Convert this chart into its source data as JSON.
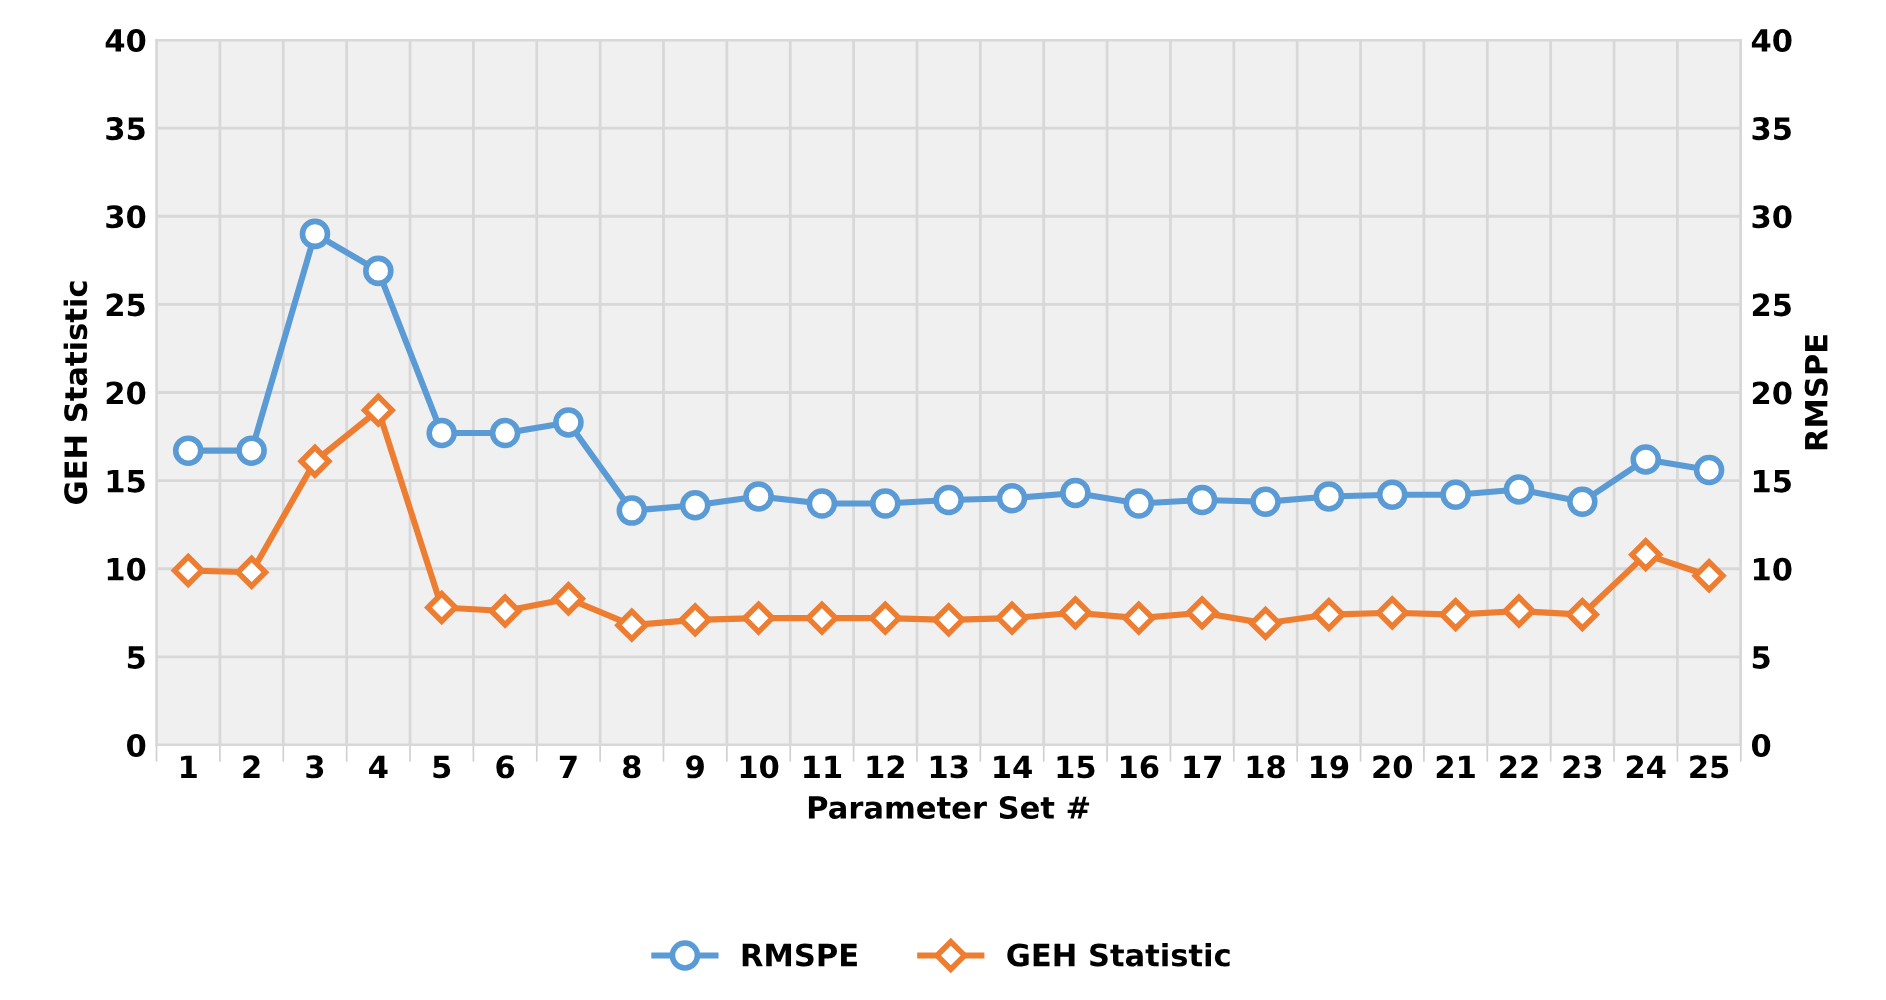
{
  "chart_data": {
    "type": "line",
    "xlabel": "Parameter Set #",
    "ylabel": "GEH Statistic",
    "y2label": "RMSPE",
    "categories": [
      "1",
      "2",
      "3",
      "4",
      "5",
      "6",
      "7",
      "8",
      "9",
      "10",
      "11",
      "12",
      "13",
      "14",
      "15",
      "16",
      "17",
      "18",
      "19",
      "20",
      "21",
      "22",
      "23",
      "24",
      "25"
    ],
    "series": [
      {
        "name": "RMSPE",
        "color": "#5b9bd5",
        "marker": "circle",
        "values": [
          16.7,
          16.7,
          29,
          26.9,
          17.7,
          17.7,
          18.3,
          13.3,
          13.6,
          14.1,
          13.7,
          13.7,
          13.9,
          14.0,
          14.3,
          13.7,
          13.9,
          13.8,
          14.1,
          14.2,
          14.2,
          14.5,
          13.8,
          16.2,
          15.6
        ]
      },
      {
        "name": "GEH Statistic",
        "color": "#ed7d31",
        "marker": "diamond",
        "values": [
          9.9,
          9.8,
          16.1,
          19,
          7.8,
          7.6,
          8.3,
          6.8,
          7.1,
          7.2,
          7.2,
          7.2,
          7.1,
          7.2,
          7.5,
          7.2,
          7.5,
          6.9,
          7.4,
          7.5,
          7.4,
          7.6,
          7.4,
          10.8,
          9.6
        ]
      }
    ],
    "ylim": [
      0,
      40
    ],
    "yticks": [
      0,
      5,
      10,
      15,
      20,
      25,
      30,
      35,
      40
    ],
    "y2lim": [
      0,
      40
    ],
    "y2ticks": [
      0,
      5,
      10,
      15,
      20,
      25,
      30,
      35,
      40
    ],
    "grid": true,
    "legend": "bottom",
    "line_style": "solid"
  }
}
